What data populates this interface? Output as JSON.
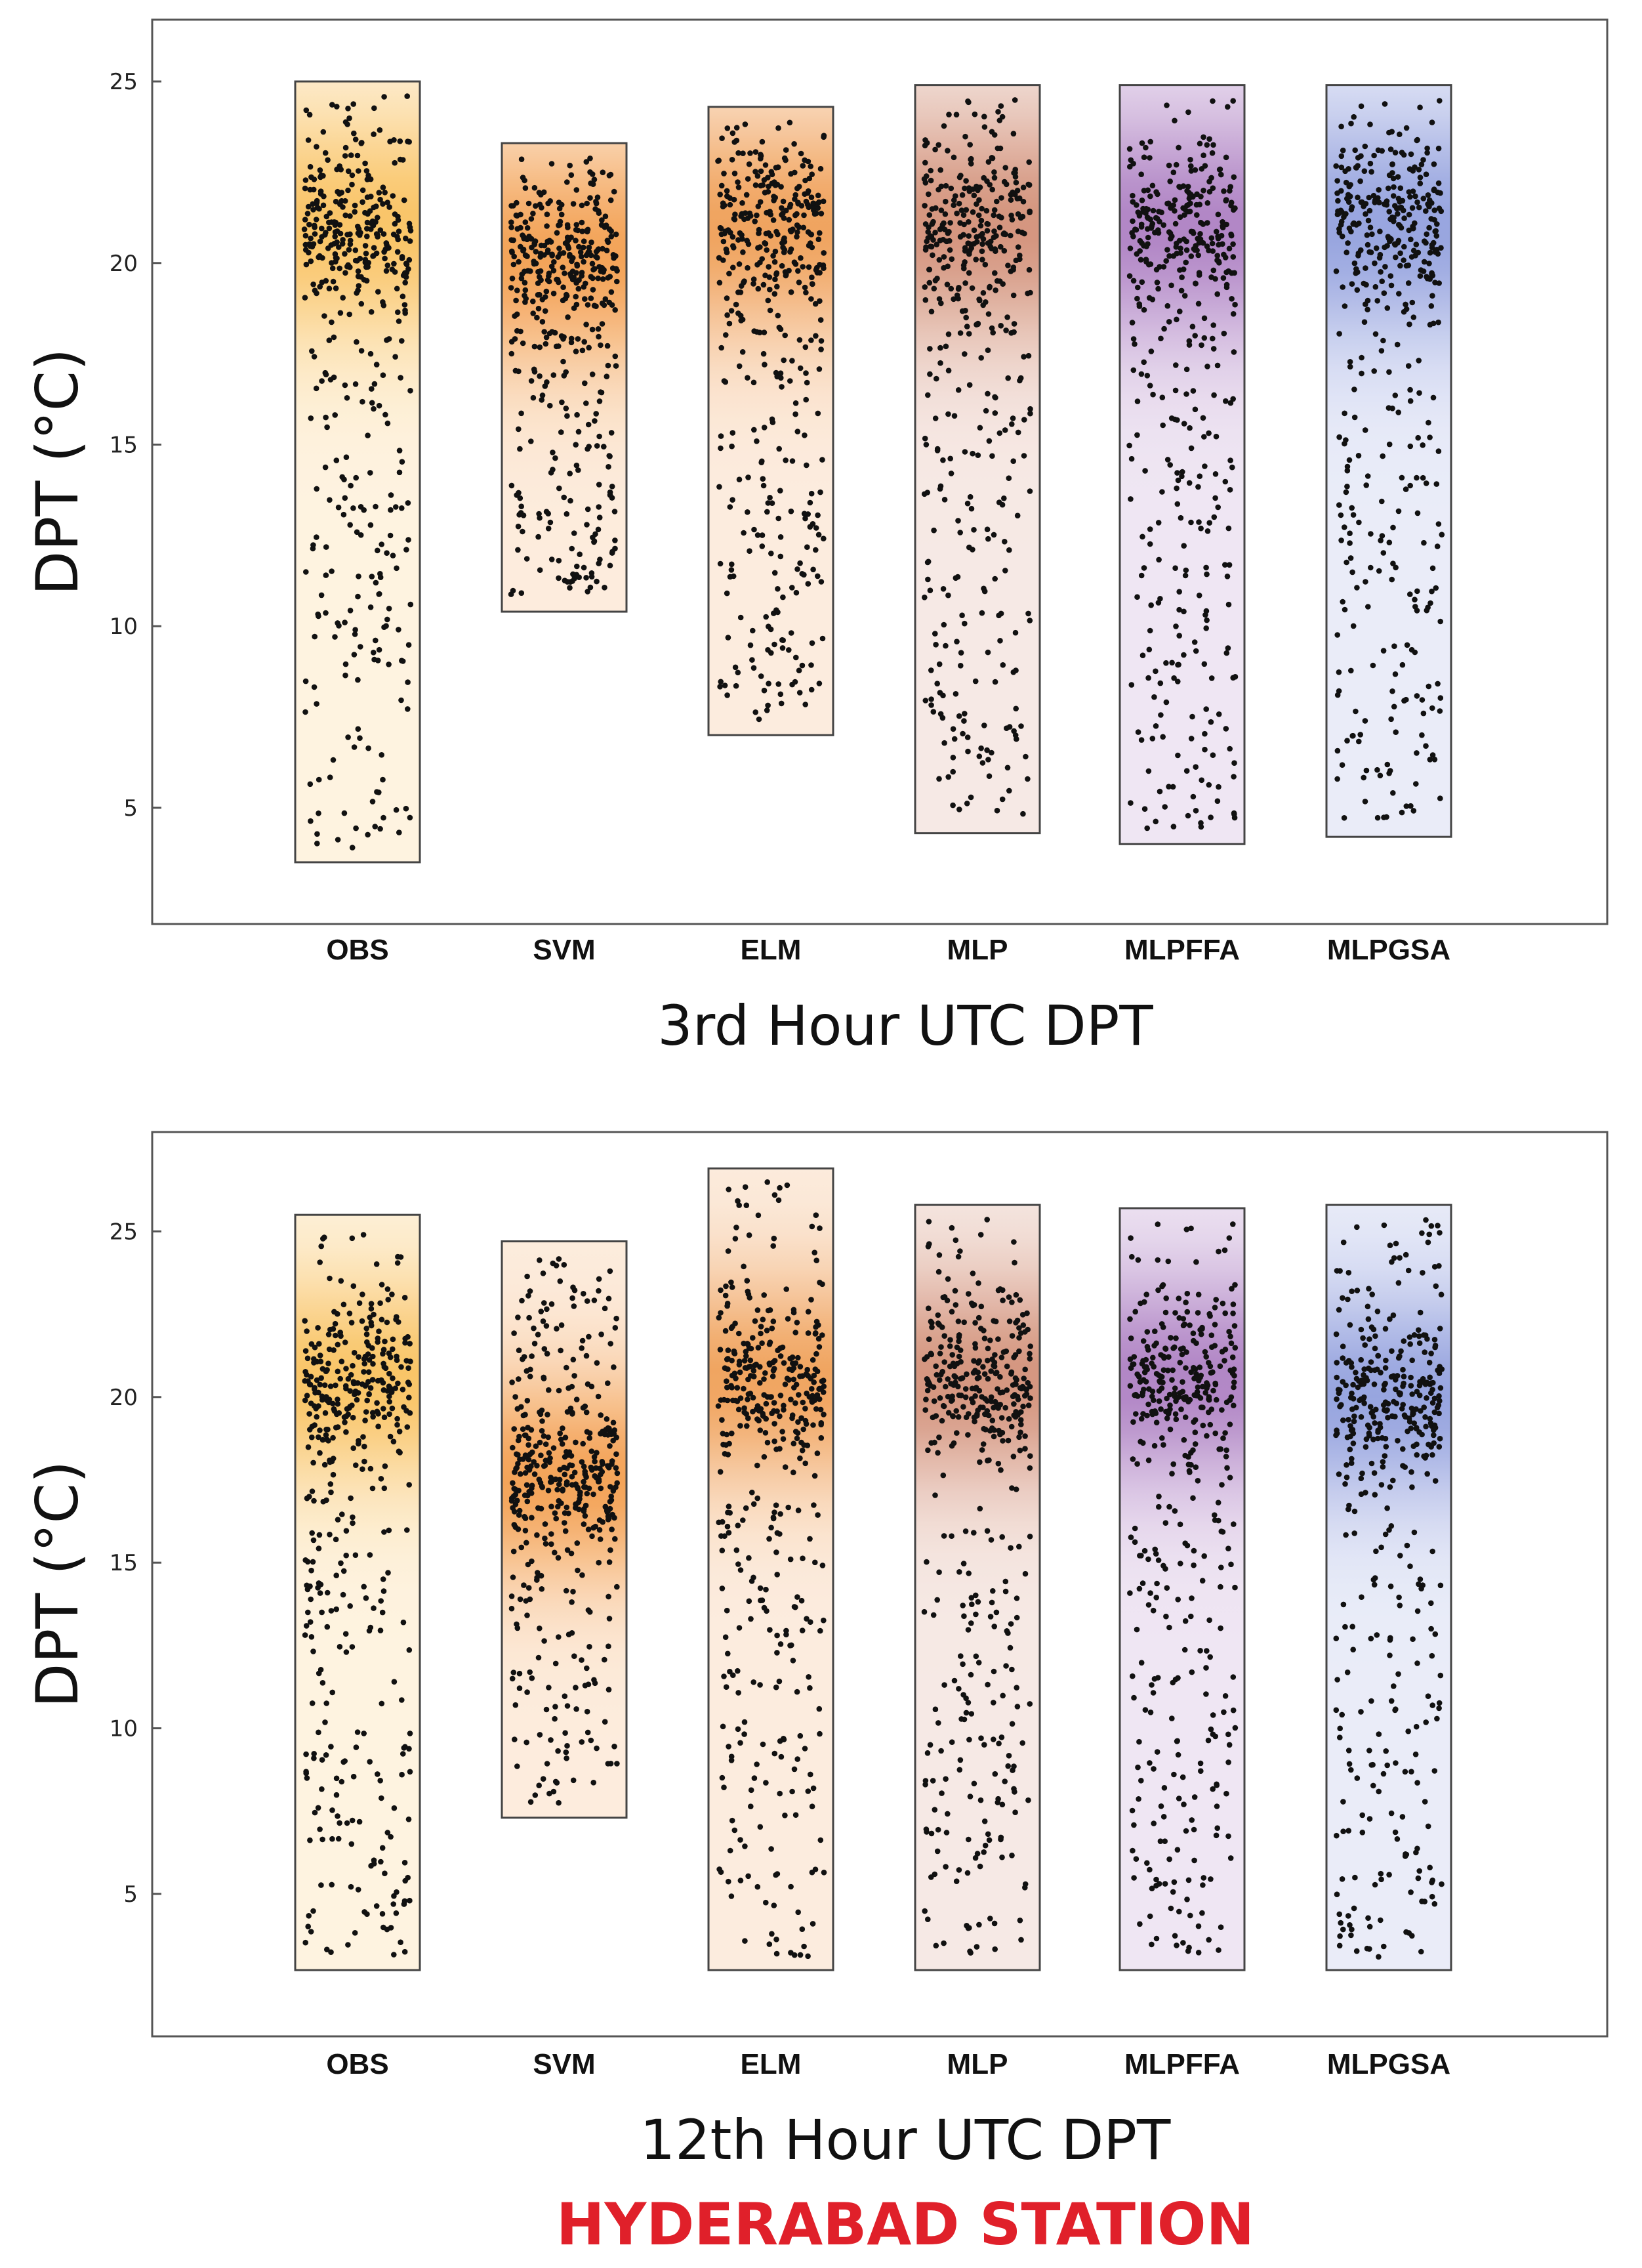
{
  "figure": {
    "station_label": "HYDERABAD STATION",
    "station_color": "#e0202a"
  },
  "chart_data": [
    {
      "type": "scatter",
      "chart_style": "jittered box (range) plot",
      "title": "3rd Hour UTC DPT",
      "xlabel": "3rd Hour UTC DPT",
      "ylabel": "DPT (°C)",
      "ylim": [
        1.8,
        26.7
      ],
      "yticks": [
        5,
        10,
        15,
        20,
        25
      ],
      "categories": [
        "OBS",
        "SVM",
        "ELM",
        "MLP",
        "MLPFFA",
        "MLPGSA"
      ],
      "series": [
        {
          "name": "OBS",
          "min": 3.5,
          "max": 25.0,
          "center": 21.0,
          "color": "#f7b43d",
          "point_count": 430
        },
        {
          "name": "SVM",
          "min": 10.4,
          "max": 23.3,
          "center": 20.2,
          "color": "#f08a2a",
          "point_count": 430
        },
        {
          "name": "ELM",
          "min": 7.0,
          "max": 24.3,
          "center": 21.0,
          "color": "#ec8a32",
          "point_count": 430
        },
        {
          "name": "MLP",
          "min": 4.3,
          "max": 24.9,
          "center": 21.0,
          "color": "#c8775a",
          "point_count": 430
        },
        {
          "name": "MLPFFA",
          "min": 4.0,
          "max": 24.9,
          "center": 21.0,
          "color": "#9b63b5",
          "point_count": 430
        },
        {
          "name": "MLPGSA",
          "min": 4.2,
          "max": 24.9,
          "center": 21.0,
          "color": "#7a8bd6",
          "point_count": 430
        }
      ]
    },
    {
      "type": "scatter",
      "chart_style": "jittered box (range) plot",
      "title": "12th Hour UTC DPT",
      "xlabel": "12th Hour UTC DPT",
      "ylabel": "DPT (°C)",
      "ylim": [
        0.7,
        28.0
      ],
      "yticks": [
        5,
        10,
        15,
        20,
        25
      ],
      "categories": [
        "OBS",
        "SVM",
        "ELM",
        "MLP",
        "MLPFFA",
        "MLPGSA"
      ],
      "series": [
        {
          "name": "OBS",
          "min": 2.7,
          "max": 25.5,
          "center": 20.5,
          "color": "#f7b43d",
          "point_count": 430
        },
        {
          "name": "SVM",
          "min": 7.3,
          "max": 24.7,
          "center": 17.5,
          "color": "#f08a2a",
          "point_count": 430
        },
        {
          "name": "ELM",
          "min": 2.7,
          "max": 26.9,
          "center": 20.5,
          "color": "#ec8a32",
          "point_count": 430
        },
        {
          "name": "MLP",
          "min": 2.7,
          "max": 25.8,
          "center": 20.5,
          "color": "#c8775a",
          "point_count": 430
        },
        {
          "name": "MLPFFA",
          "min": 2.7,
          "max": 25.7,
          "center": 20.5,
          "color": "#9b63b5",
          "point_count": 430
        },
        {
          "name": "MLPGSA",
          "min": 2.7,
          "max": 25.8,
          "center": 20.0,
          "color": "#7a8bd6",
          "point_count": 430
        }
      ]
    }
  ]
}
